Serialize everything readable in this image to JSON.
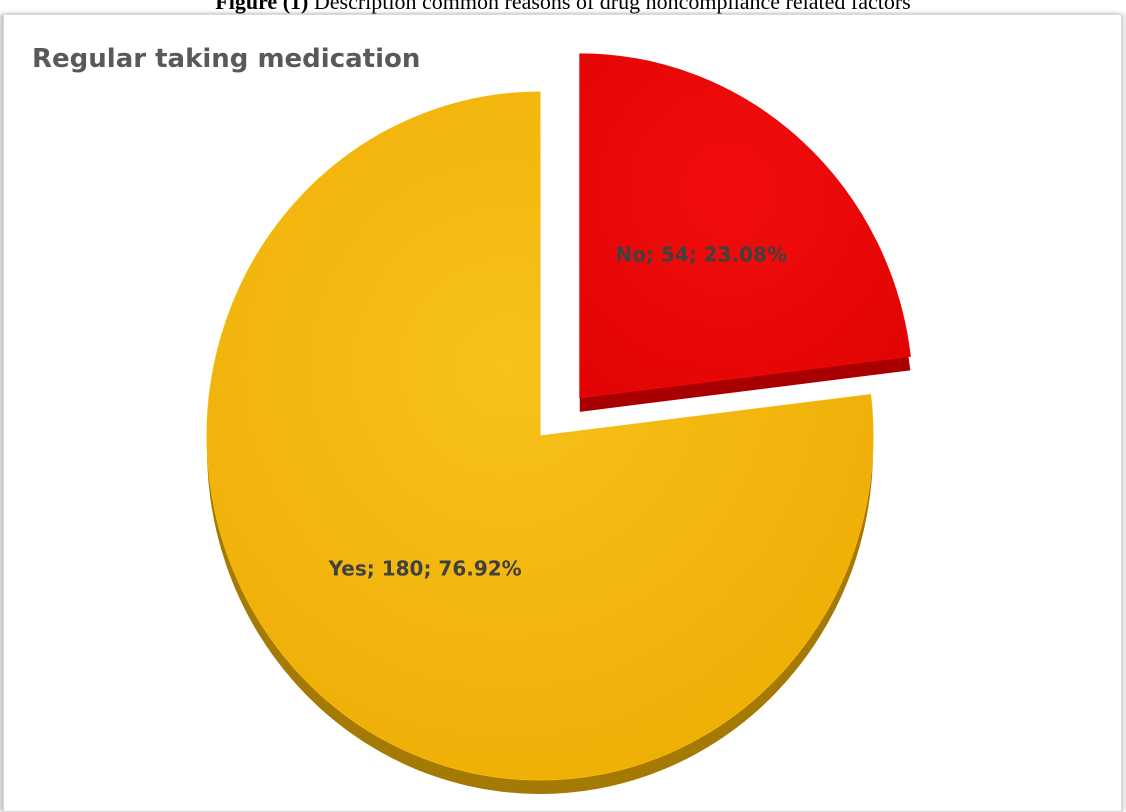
{
  "caption": {
    "bold": "Figure (1)",
    "text": " Description common reasons of drug noncompliance related factors"
  },
  "chart_data": {
    "type": "pie",
    "title": "Regular taking medication",
    "slices": [
      {
        "label": "Yes",
        "value": 180,
        "percent": "76.92%",
        "color": "#f4b80a",
        "exploded": false
      },
      {
        "label": "No",
        "value": 54,
        "percent": "23.08%",
        "color": "#ee0808",
        "exploded": true
      }
    ],
    "data_labels": [
      "No; 54; 23.08%",
      "Yes; 180; 76.92%"
    ],
    "legend": "none"
  }
}
